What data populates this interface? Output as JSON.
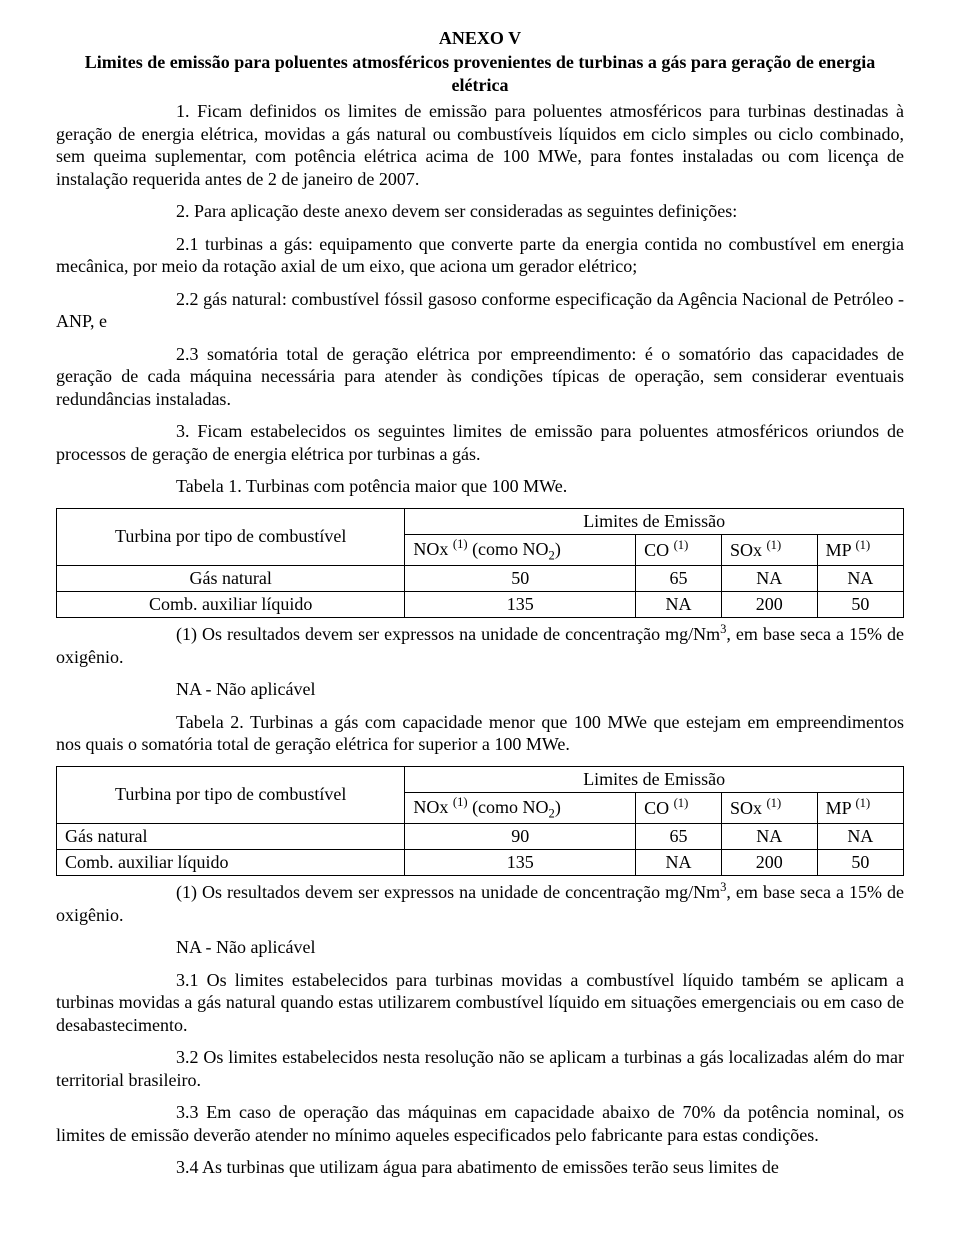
{
  "title": "ANEXO V",
  "subtitle": "Limites de emissão para poluentes atmosféricos provenientes de turbinas a gás para geração de energia elétrica",
  "paras": {
    "p1": "1. Ficam definidos os limites de emissão para poluentes atmosféricos para turbinas destinadas à geração de energia elétrica, movidas a gás natural ou combustíveis líquidos em ciclo simples ou ciclo combinado, sem queima suplementar, com potência elétrica acima de 100 MWe, para fontes instaladas ou com licença de instalação requerida antes de 2 de janeiro de 2007.",
    "p2": "2. Para aplicação deste anexo devem ser consideradas as seguintes definições:",
    "p2_1": "2.1 turbinas a gás: equipamento que converte parte da energia contida no combustível em energia mecânica, por meio da rotação axial de um eixo, que aciona um gerador elétrico;",
    "p2_2": "2.2 gás natural: combustível fóssil gasoso conforme especificação da Agência Nacional de Petróleo - ANP, e",
    "p2_3": "2.3 somatória total de geração elétrica por empreendimento: é o somatório das capacidades de geração de cada máquina necessária para atender às condições típicas de operação, sem considerar eventuais redundâncias instaladas.",
    "p3": "3. Ficam estabelecidos os seguintes limites de emissão para poluentes atmosféricos oriundos de processos de geração de energia elétrica por turbinas a gás.",
    "t1_caption": "Tabela 1. Turbinas com potência maior que 100 MWe.",
    "note1_a": "(1) Os resultados devem ser expressos na unidade de concentração mg/Nm",
    "note1_b": ", em base seca a 15% de oxigênio.",
    "na_def": "NA - Não aplicável",
    "t2_caption": "Tabela 2. Turbinas a gás com capacidade menor que 100 MWe que estejam em empreendimentos nos quais o somatória total de geração elétrica for superior a 100 MWe.",
    "p3_1": "3.1 Os limites estabelecidos para turbinas movidas a combustível líquido também se aplicam a turbinas movidas a gás natural quando estas utilizarem combustível líquido em situações emergenciais ou em caso de desabastecimento.",
    "p3_2": "3.2 Os limites estabelecidos nesta resolução não se aplicam a turbinas a gás localizadas além do mar territorial brasileiro.",
    "p3_3": "3.3 Em caso de operação das máquinas em capacidade abaixo de 70% da potência nominal, os limites de emissão deverão atender no mínimo aqueles especificados pelo fabricante para estas condições.",
    "p3_4": "3.4 As turbinas que utilizam água para abatimento de emissões terão seus limites de"
  },
  "table1": {
    "head_col0": "Turbina por tipo de combustível",
    "head_span": "Limites de Emissão",
    "sub_nox_a": "NOx ",
    "sub_nox_b": " (como NO",
    "sub_nox_c": ")",
    "sub_co": "CO ",
    "sub_sox": "SOx ",
    "sub_mp": "MP ",
    "sup1": "(1)",
    "sub2": "2",
    "rows": [
      {
        "label": "Gás natural",
        "nox": "50",
        "co": "65",
        "sox": "NA",
        "mp": "NA"
      },
      {
        "label": "Comb. auxiliar líquido",
        "nox": "135",
        "co": "NA",
        "sox": "200",
        "mp": "50"
      }
    ]
  },
  "table2": {
    "head_col0": "Turbina por tipo de combustível",
    "head_span": "Limites de Emissão",
    "rows": [
      {
        "label": "Gás natural",
        "nox": "90",
        "co": "65",
        "sox": "NA",
        "mp": "NA"
      },
      {
        "label": "Comb. auxiliar líquido",
        "nox": "135",
        "co": "NA",
        "sox": "200",
        "mp": "50"
      }
    ]
  },
  "sup3": "3"
}
